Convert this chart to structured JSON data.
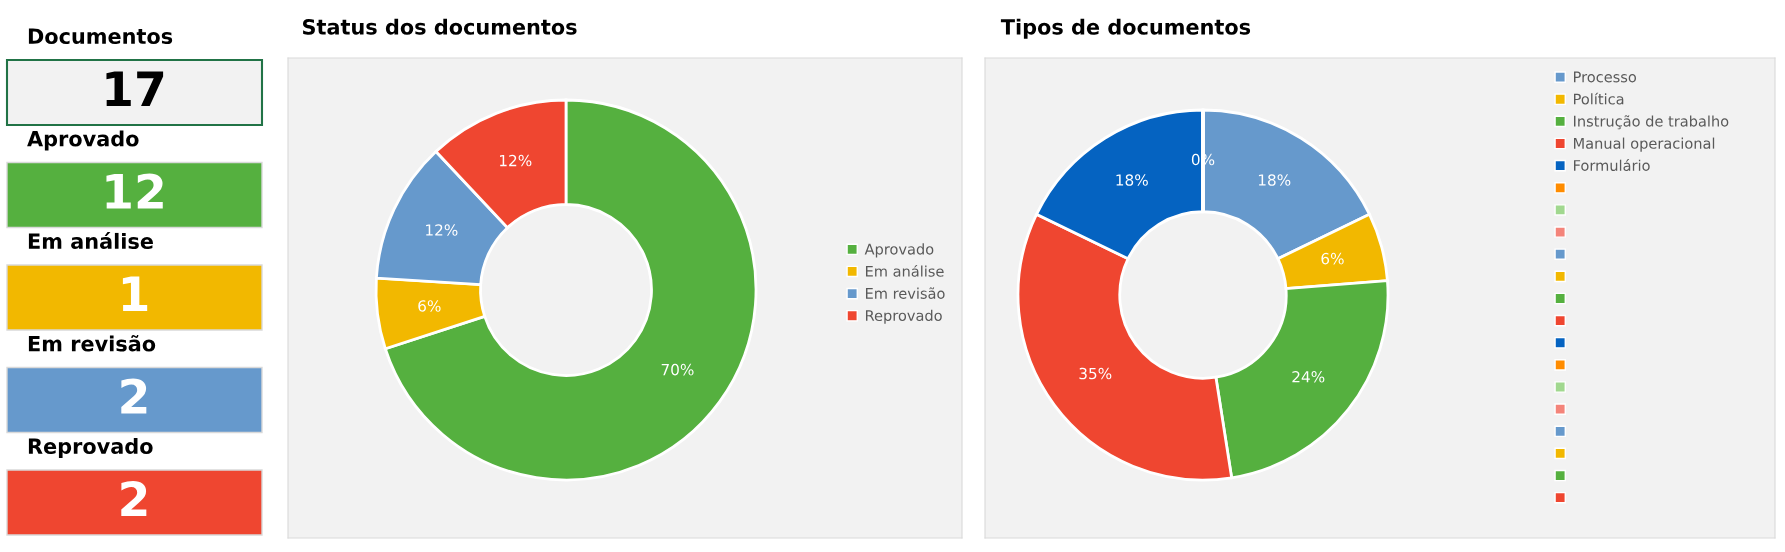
{
  "chart_data": [
    {
      "type": "other",
      "categories": [
        "Documentos",
        "Aprovado",
        "Em análise",
        "Em revisão",
        "Reprovado"
      ],
      "values": [
        17,
        12,
        1,
        2,
        2
      ],
      "colors": [
        "#f2f2f2",
        "#55b03f",
        "#f2b800",
        "#6699cc",
        "#ef4630"
      ],
      "data_labels": true
    },
    {
      "type": "donut",
      "title": "Status dos documentos",
      "categories": [
        "Aprovado",
        "Em análise",
        "Em revisão",
        "Reprovado"
      ],
      "values": [
        70,
        6,
        12,
        12
      ],
      "colors": [
        "#55b03f",
        "#f2b800",
        "#6699cc",
        "#ef4630"
      ],
      "value_labels": [
        "70%",
        "6%",
        "12%",
        "12%"
      ],
      "legend": "right"
    },
    {
      "type": "donut",
      "title": "Tipos de documentos",
      "categories": [
        "Processo",
        "Política",
        "Instrução de trabalho",
        "Manual operacional",
        "Formulário",
        null,
        null,
        null,
        null,
        null,
        null,
        null,
        null,
        null,
        null,
        null,
        null,
        null,
        null,
        null
      ],
      "values": [
        18,
        6,
        24,
        35,
        18,
        0,
        0,
        0,
        0,
        0,
        0,
        0,
        0,
        0,
        0,
        0,
        0,
        0,
        0,
        0
      ],
      "colors": [
        "#6699cc",
        "#f2b800",
        "#55b03f",
        "#ef4630",
        "#0563c1",
        "#ff8c00",
        "#a1d88f",
        "#f4847a",
        "#6699cc",
        "#f2b800",
        "#55b03f",
        "#ef4630",
        "#0563c1",
        "#ff8c00",
        "#a1d88f",
        "#f4847a",
        "#6699cc",
        "#f2b800",
        "#55b03f",
        "#ef4630"
      ],
      "value_labels": [
        "18%",
        "6%",
        "24%",
        "35%",
        "18%",
        "0%",
        null,
        null,
        null,
        null,
        null,
        null,
        null,
        null,
        null,
        null,
        null,
        null,
        null,
        null
      ],
      "legend": "top right"
    }
  ]
}
